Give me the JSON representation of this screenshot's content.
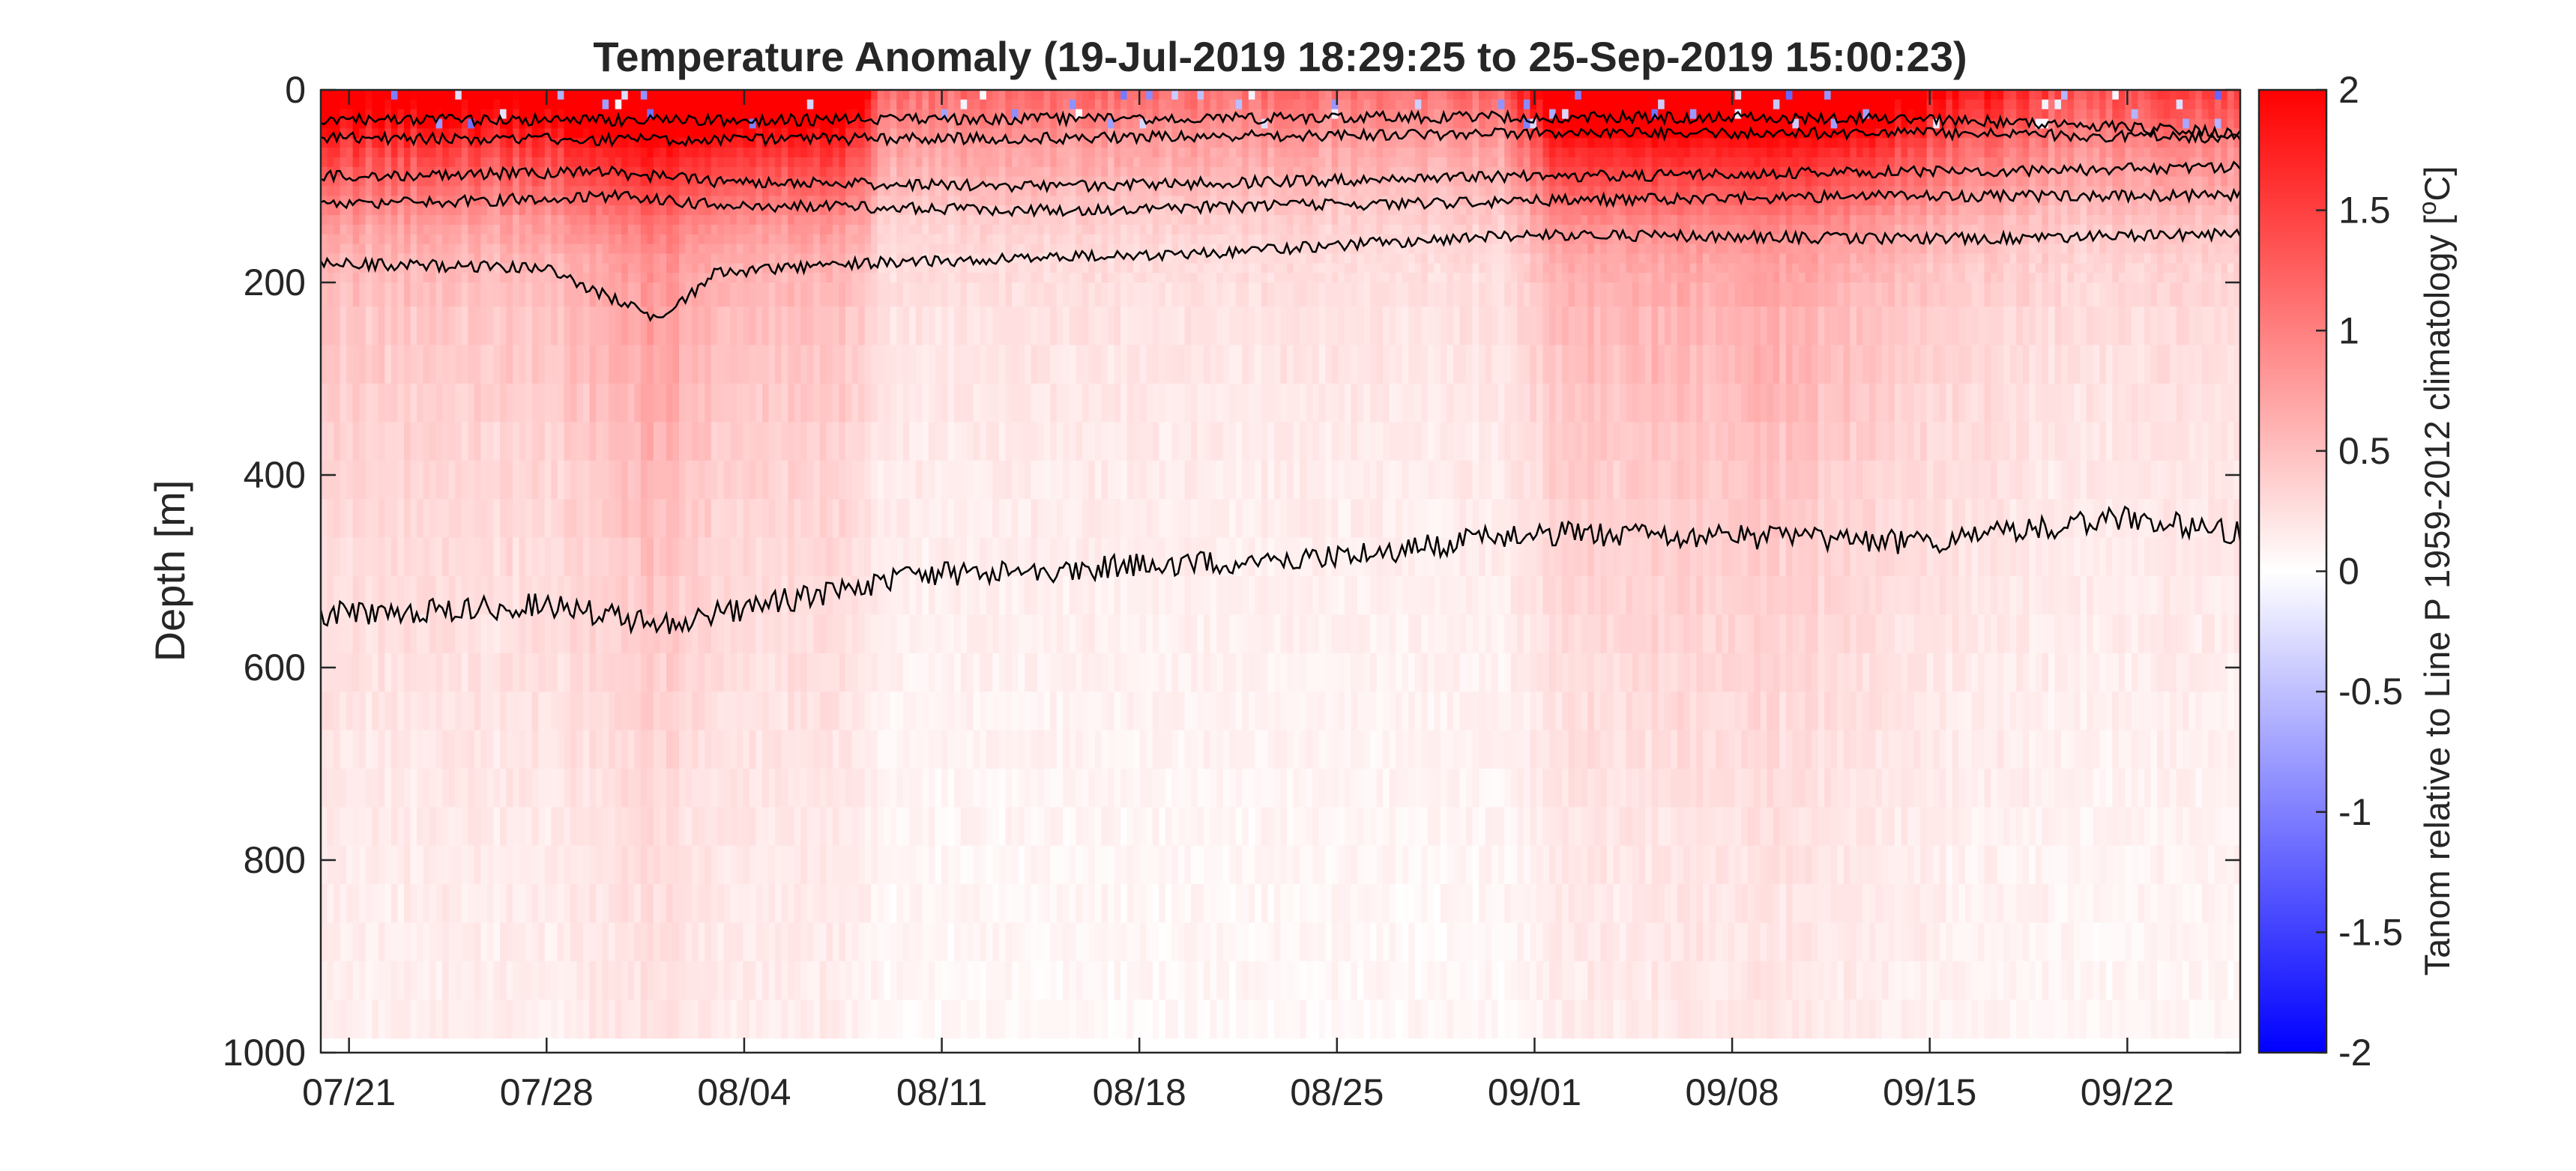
{
  "chart_data": {
    "type": "heatmap",
    "title": "Temperature Anomaly (19-Jul-2019 18:29:25 to 25-Sep-2019 15:00:23)",
    "ylabel": "Depth [m]",
    "xlabel": "",
    "colorbar_label": "Tanom relative to Line P 1959-2012 climatology [°C]",
    "colorbar_label_prefix": "Tanom relative to Line P 1959-2012 climatology [",
    "colorbar_label_sup": "o",
    "colorbar_label_suffix": "C]",
    "colormap": [
      "#0000ff",
      "#ffffff",
      "#ff0000"
    ],
    "clim": [
      -2,
      2
    ],
    "xlim": [
      "2019-07-20",
      "2019-09-26"
    ],
    "ylim": [
      0,
      1000
    ],
    "y_reversed": true,
    "x_ticks": [
      {
        "date": "2019-07-21",
        "label": "07/21"
      },
      {
        "date": "2019-07-28",
        "label": "07/28"
      },
      {
        "date": "2019-08-04",
        "label": "08/04"
      },
      {
        "date": "2019-08-11",
        "label": "08/11"
      },
      {
        "date": "2019-08-18",
        "label": "08/18"
      },
      {
        "date": "2019-08-25",
        "label": "08/25"
      },
      {
        "date": "2019-09-01",
        "label": "09/01"
      },
      {
        "date": "2019-09-08",
        "label": "09/08"
      },
      {
        "date": "2019-09-15",
        "label": "09/15"
      },
      {
        "date": "2019-09-22",
        "label": "09/22"
      }
    ],
    "y_ticks": [
      {
        "value": 0,
        "label": "0"
      },
      {
        "value": 200,
        "label": "200"
      },
      {
        "value": 400,
        "label": "400"
      },
      {
        "value": 600,
        "label": "600"
      },
      {
        "value": 800,
        "label": "800"
      },
      {
        "value": 1000,
        "label": "1000"
      }
    ],
    "colorbar_ticks": [
      {
        "value": 2,
        "label": "2"
      },
      {
        "value": 1.5,
        "label": "1.5"
      },
      {
        "value": 1,
        "label": "1"
      },
      {
        "value": 0.5,
        "label": "0.5"
      },
      {
        "value": 0,
        "label": "0"
      },
      {
        "value": -0.5,
        "label": "-0.5"
      },
      {
        "value": -1,
        "label": "-1"
      },
      {
        "value": -1.5,
        "label": "-1.5"
      },
      {
        "value": -2,
        "label": "-2"
      }
    ],
    "profile_depth_max": 985,
    "anomaly_profile": {
      "depths": [
        0,
        30,
        60,
        100,
        140,
        180,
        250,
        400,
        600,
        800,
        985
      ],
      "base_values": [
        1.9,
        1.6,
        1.2,
        0.9,
        0.6,
        0.45,
        0.35,
        0.25,
        0.18,
        0.12,
        0.1
      ]
    },
    "anomaly_modulation": [
      {
        "date": "2019-07-20",
        "factor": 1.25
      },
      {
        "date": "2019-07-28",
        "factor": 1.25
      },
      {
        "date": "2019-08-01",
        "factor": 2.3
      },
      {
        "date": "2019-08-03",
        "factor": 1.5
      },
      {
        "date": "2019-08-08",
        "factor": 1.3
      },
      {
        "date": "2019-08-09",
        "factor": 0.6
      },
      {
        "date": "2019-08-31",
        "factor": 0.6
      },
      {
        "date": "2019-09-02",
        "factor": 1.6
      },
      {
        "date": "2019-09-10",
        "factor": 1.8
      },
      {
        "date": "2019-09-14",
        "factor": 1.2
      },
      {
        "date": "2019-09-20",
        "factor": 0.7
      },
      {
        "date": "2019-09-26",
        "factor": 0.8
      }
    ],
    "contour_lines": [
      {
        "points": [
          [
            "2019-07-20",
            30
          ],
          [
            "2019-08-01",
            32
          ],
          [
            "2019-08-15",
            30
          ],
          [
            "2019-09-01",
            28
          ],
          [
            "2019-09-15",
            30
          ],
          [
            "2019-09-26",
            45
          ]
        ]
      },
      {
        "points": [
          [
            "2019-07-20",
            50
          ],
          [
            "2019-08-01",
            52
          ],
          [
            "2019-08-15",
            50
          ],
          [
            "2019-09-01",
            45
          ],
          [
            "2019-09-15",
            45
          ],
          [
            "2019-09-26",
            50
          ]
        ]
      },
      {
        "points": [
          [
            "2019-07-20",
            90
          ],
          [
            "2019-07-30",
            85
          ],
          [
            "2019-08-03",
            95
          ],
          [
            "2019-08-15",
            100
          ],
          [
            "2019-09-01",
            90
          ],
          [
            "2019-09-15",
            85
          ],
          [
            "2019-09-26",
            80
          ]
        ]
      },
      {
        "points": [
          [
            "2019-07-20",
            120
          ],
          [
            "2019-07-31",
            110
          ],
          [
            "2019-08-03",
            120
          ],
          [
            "2019-08-15",
            125
          ],
          [
            "2019-09-01",
            115
          ],
          [
            "2019-09-15",
            110
          ],
          [
            "2019-09-26",
            110
          ]
        ]
      },
      {
        "points": [
          [
            "2019-07-20",
            180
          ],
          [
            "2019-07-28",
            185
          ],
          [
            "2019-08-01",
            240
          ],
          [
            "2019-08-03",
            190
          ],
          [
            "2019-08-08",
            180
          ],
          [
            "2019-08-20",
            170
          ],
          [
            "2019-09-01",
            150
          ],
          [
            "2019-09-15",
            155
          ],
          [
            "2019-09-26",
            150
          ]
        ]
      },
      {
        "points": [
          [
            "2019-07-20",
            545
          ],
          [
            "2019-07-28",
            535
          ],
          [
            "2019-08-01",
            555
          ],
          [
            "2019-08-10",
            505
          ],
          [
            "2019-08-25",
            485
          ],
          [
            "2019-09-01",
            460
          ],
          [
            "2019-09-15",
            470
          ],
          [
            "2019-09-22",
            445
          ],
          [
            "2019-09-26",
            460
          ]
        ]
      }
    ]
  }
}
